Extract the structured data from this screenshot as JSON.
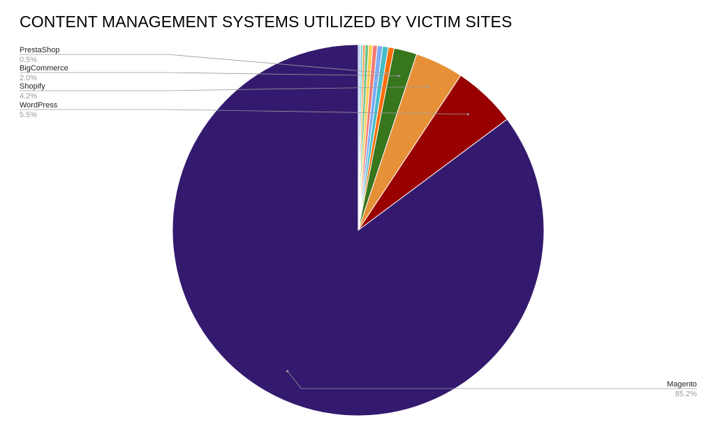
{
  "chart_data": {
    "type": "pie",
    "title": "CONTENT MANAGEMENT SYSTEMS UTILIZED BY VICTIM SITES",
    "slices": [
      {
        "name": "Magento",
        "value": 85.2,
        "label": "85.2%",
        "color": "#331a6e",
        "labeled": true
      },
      {
        "name": "WordPress",
        "value": 5.5,
        "label": "5.5%",
        "color": "#990000",
        "labeled": true
      },
      {
        "name": "Shopify",
        "value": 4.2,
        "label": "4.2%",
        "color": "#e69138",
        "labeled": true
      },
      {
        "name": "BigCommerce",
        "value": 2.0,
        "label": "2.0%",
        "color": "#38761d",
        "labeled": true
      },
      {
        "name": "PrestaShop",
        "value": 0.5,
        "label": "0.5%",
        "color": "#ff6d01",
        "labeled": true
      },
      {
        "name": "",
        "value": 0.5,
        "color": "#46bdc6",
        "labeled": false
      },
      {
        "name": "",
        "value": 0.45,
        "color": "#7baaf7",
        "labeled": false
      },
      {
        "name": "",
        "value": 0.4,
        "color": "#f07b72",
        "labeled": false
      },
      {
        "name": "",
        "value": 0.35,
        "color": "#fcd04f",
        "labeled": false
      },
      {
        "name": "",
        "value": 0.3,
        "color": "#71c287",
        "labeled": false
      },
      {
        "name": "",
        "value": 0.2,
        "color": "#ff994d",
        "labeled": false
      },
      {
        "name": "",
        "value": 0.2,
        "color": "#7ed1d7",
        "labeled": false
      },
      {
        "name": "",
        "value": 0.2,
        "color": "#b3cefb",
        "labeled": false
      }
    ],
    "start_angle": "12 o'clock",
    "direction": "counterclockwise",
    "label_style": "callout lines with name and percentage"
  }
}
